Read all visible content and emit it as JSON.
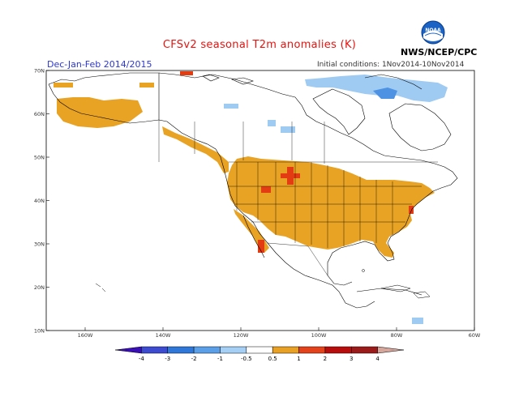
{
  "header": {
    "title": "CFSv2 seasonal T2m anomalies (K)",
    "season": "Dec-Jan-Feb 2014/2015",
    "initial_conditions": "Initial conditions: 1Nov2014-10Nov2014",
    "agency": "NWS/NCEP/CPC",
    "logo_text": "NOAA"
  },
  "map": {
    "region": "North America",
    "projection": "equirectangular",
    "lon_range": [
      -170,
      -60
    ],
    "lat_range": [
      10,
      70
    ],
    "lat_ticks": [
      "70N",
      "60N",
      "50N",
      "40N",
      "30N",
      "20N",
      "10N"
    ],
    "lon_ticks": [
      "160W",
      "140W",
      "120W",
      "100W",
      "80W",
      "60W"
    ],
    "colors": {
      "warm_0_5_1": "#e8a224",
      "warm_1_2": "#e33c12",
      "cool_m1_m0_5": "#9fcbf2",
      "cool_m2_m1": "#4d92e3",
      "coast": "#000000",
      "frame": "#000000"
    },
    "anomaly_regions": [
      {
        "name": "contiguous-us-warm",
        "category": "0.5 to 1"
      },
      {
        "name": "alaska-warm",
        "category": "0.5 to 1"
      },
      {
        "name": "pacific-coast-canada-warm",
        "category": "0.5 to 1"
      },
      {
        "name": "northern-plains-hotspot",
        "category": "1 to 2"
      },
      {
        "name": "baja-hotspot",
        "category": "1 to 2"
      },
      {
        "name": "eastern-canada-cool",
        "category": "-1 to -0.5"
      },
      {
        "name": "labrador-cool",
        "category": "-2 to -1"
      }
    ]
  },
  "legend": {
    "labels": [
      "-4",
      "-3",
      "-2",
      "-1",
      "-0.5",
      "0.5",
      "1",
      "2",
      "3",
      "4"
    ],
    "colors": [
      "#3a0fb8",
      "#3d4bd0",
      "#2f78d9",
      "#5a9fe8",
      "#a6cff5",
      "#ffffff",
      "#e9a125",
      "#e4421a",
      "#b80d0d",
      "#9b1a1a",
      "#d6a69c"
    ]
  }
}
